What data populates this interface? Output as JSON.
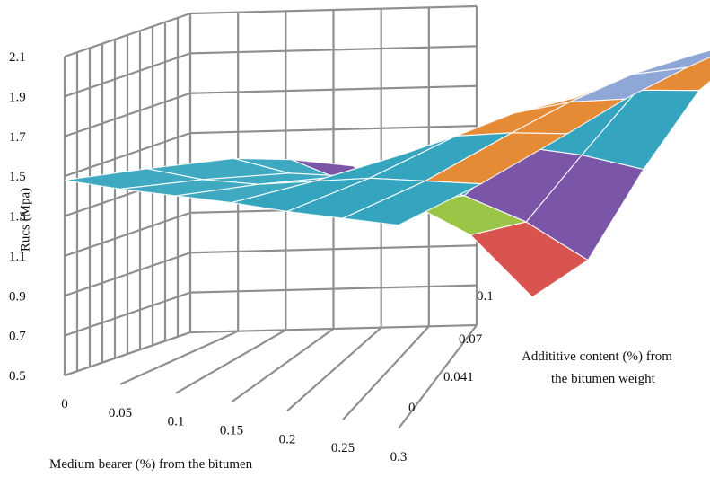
{
  "chart_data": {
    "type": "surface",
    "title": "",
    "zlabel": "Rucs (Mpa)",
    "xlabel": "Medium bearer (%) from the bitumen",
    "ylabel": "Additive content (%) from the bitumen weight",
    "ylabel_lines": [
      "Addititive content (%) from",
      "the bitumen weight"
    ],
    "x_ticks": [
      "0",
      "0.05",
      "0.1",
      "0.15",
      "0.2",
      "0.25",
      "0.3"
    ],
    "y_ticks": [
      "0",
      "0.041",
      "0.07",
      "0.1"
    ],
    "z_ticks": [
      "0.5",
      "0.7",
      "0.9",
      "1.1",
      "1.3",
      "1.5",
      "1.7",
      "1.9",
      "2.1"
    ],
    "x": [
      0,
      0.05,
      0.1,
      0.15,
      0.2,
      0.25,
      0.3
    ],
    "y": [
      0,
      0.02,
      0.041,
      0.055,
      0.07,
      0.085,
      0.1
    ],
    "zlim": [
      0.5,
      2.1
    ],
    "z": [
      [
        1.48,
        1.48,
        1.49,
        1.5,
        1.5,
        1.51,
        1.52
      ],
      [
        1.46,
        1.45,
        1.47,
        1.53,
        1.59,
        1.62,
        1.65
      ],
      [
        1.43,
        1.4,
        1.43,
        1.58,
        1.72,
        1.78,
        1.82
      ],
      [
        1.37,
        1.3,
        1.35,
        1.56,
        1.78,
        1.88,
        1.94
      ],
      [
        1.28,
        1.14,
        1.22,
        1.51,
        1.8,
        1.96,
        2.04
      ],
      [
        1.14,
        0.92,
        1.03,
        1.41,
        1.78,
        2.0,
        2.12
      ],
      [
        0.95,
        0.55,
        0.78,
        1.28,
        1.72,
        2.0,
        2.18
      ]
    ],
    "color_bands": [
      {
        "range": [
          0.5,
          0.7
        ],
        "color": "#4a7cc9"
      },
      {
        "range": [
          0.7,
          0.9
        ],
        "color": "#d9534f"
      },
      {
        "range": [
          0.9,
          1.1
        ],
        "color": "#9bc547"
      },
      {
        "range": [
          1.1,
          1.3
        ],
        "color": "#7b55a8"
      },
      {
        "range": [
          1.3,
          1.5
        ],
        "color": "#3ea9c1"
      },
      {
        "range": [
          1.5,
          1.7
        ],
        "color": "#35a5bf"
      },
      {
        "range": [
          1.7,
          1.9
        ],
        "color": "#e58a35"
      },
      {
        "range": [
          1.9,
          2.1
        ],
        "color": "#8fa7d6"
      },
      {
        "range": [
          2.1,
          2.3
        ],
        "color": "#dd7c80"
      }
    ],
    "grid": true,
    "legend": "none"
  }
}
